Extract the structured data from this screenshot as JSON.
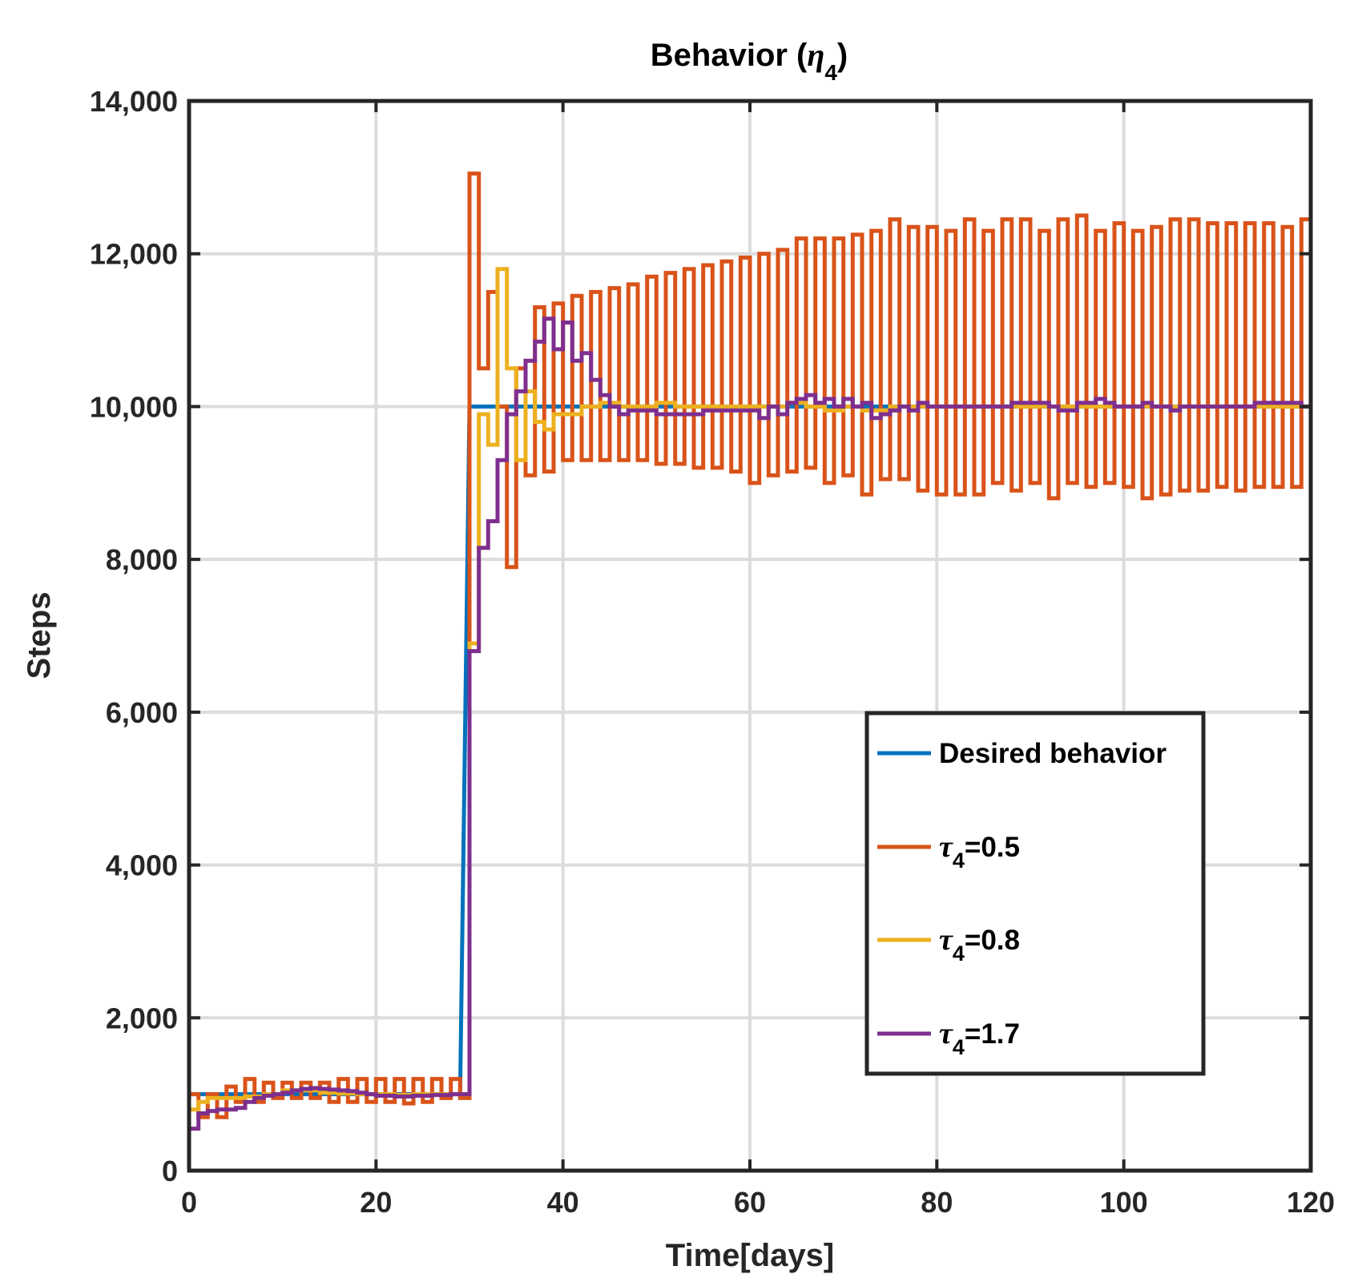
{
  "chart_data": {
    "type": "line",
    "title": "Behavior (",
    "title_symbol": "η",
    "title_subscript": "4",
    "title_close": ")",
    "xlabel": "Time[days]",
    "ylabel": "Steps",
    "xlim": [
      0,
      120
    ],
    "ylim": [
      0,
      14000
    ],
    "x_ticks": [
      0,
      20,
      40,
      60,
      80,
      100,
      120
    ],
    "x_tick_labels": [
      "0",
      "20",
      "40",
      "60",
      "80",
      "100",
      "120"
    ],
    "y_ticks": [
      0,
      2000,
      4000,
      6000,
      8000,
      10000,
      12000,
      14000
    ],
    "y_tick_labels": [
      "0",
      "2,000",
      "4,000",
      "6,000",
      "8,000",
      "10,000",
      "12,000",
      "14,000"
    ],
    "grid": true,
    "legend_position": "lower-right",
    "series": [
      {
        "name": "Desired behavior",
        "color": "#0072BD",
        "mode": "linear",
        "points": [
          [
            0,
            1000
          ],
          [
            29,
            1000
          ],
          [
            30,
            10000
          ],
          [
            120,
            10000
          ]
        ]
      },
      {
        "name": "τ4=0.5",
        "legend_symbol": "τ",
        "legend_sub": "4",
        "legend_value": "=0.5",
        "color": "#D95319",
        "mode": "stairs",
        "x": [
          0,
          1,
          2,
          3,
          4,
          5,
          6,
          7,
          8,
          9,
          10,
          11,
          12,
          13,
          14,
          15,
          16,
          17,
          18,
          19,
          20,
          21,
          22,
          23,
          24,
          25,
          26,
          27,
          28,
          29,
          30,
          31,
          32,
          33,
          34,
          35,
          36,
          37,
          38,
          39,
          40,
          41,
          42,
          43,
          44,
          45,
          46,
          47,
          48,
          49,
          50,
          51,
          52,
          53,
          54,
          55,
          56,
          57,
          58,
          59,
          60,
          61,
          62,
          63,
          64,
          65,
          66,
          67,
          68,
          69,
          70,
          71,
          72,
          73,
          74,
          75,
          76,
          77,
          78,
          79,
          80,
          81,
          82,
          83,
          84,
          85,
          86,
          87,
          88,
          89,
          90,
          91,
          92,
          93,
          94,
          95,
          96,
          97,
          98,
          99,
          100,
          101,
          102,
          103,
          104,
          105,
          106,
          107,
          108,
          109,
          110,
          111,
          112,
          113,
          114,
          115,
          116,
          117,
          118,
          119
        ],
        "values": [
          1000,
          700,
          1000,
          700,
          1100,
          900,
          1200,
          900,
          1150,
          950,
          1150,
          950,
          1150,
          950,
          1150,
          900,
          1200,
          900,
          1200,
          900,
          1200,
          900,
          1200,
          880,
          1200,
          900,
          1200,
          950,
          1200,
          950,
          13050,
          10500,
          11500,
          10000,
          7900,
          10500,
          9100,
          11300,
          9150,
          11350,
          9300,
          11450,
          9300,
          11500,
          9300,
          11550,
          9300,
          11600,
          9300,
          11700,
          9250,
          11750,
          9250,
          11800,
          9200,
          11850,
          9200,
          11900,
          9150,
          11950,
          9000,
          12000,
          9100,
          12050,
          9150,
          12200,
          9200,
          12200,
          9000,
          12200,
          9100,
          12250,
          8850,
          12300,
          9050,
          12450,
          9050,
          12350,
          8900,
          12350,
          8850,
          12300,
          8850,
          12450,
          8850,
          12300,
          9000,
          12450,
          8900,
          12450,
          9000,
          12300,
          8800,
          12450,
          9000,
          12500,
          8950,
          12300,
          9000,
          12400,
          8950,
          12300,
          8800,
          12350,
          8850,
          12450,
          8900,
          12450,
          8900,
          12400,
          8950,
          12400,
          8900,
          12400,
          8950,
          12400,
          8950,
          12350,
          8950,
          12450
        ],
        "end_x": 120
      },
      {
        "name": "τ4=0.8",
        "legend_symbol": "τ",
        "legend_sub": "4",
        "legend_value": "=0.8",
        "color": "#EDB120",
        "mode": "stairs",
        "x": [
          0,
          1,
          2,
          4,
          6,
          8,
          10,
          12,
          14,
          16,
          18,
          20,
          22,
          24,
          26,
          28,
          30,
          31,
          32,
          33,
          34,
          35,
          36,
          37,
          38,
          39,
          40,
          42,
          44,
          46,
          48,
          50,
          52,
          55,
          58,
          60,
          62,
          64,
          66,
          68,
          70,
          72,
          75,
          80,
          85,
          90,
          95,
          100,
          105,
          110,
          115
        ],
        "values": [
          800,
          900,
          950,
          950,
          970,
          1000,
          1050,
          1050,
          1020,
          1010,
          1000,
          1000,
          990,
          1000,
          1000,
          1000,
          6900,
          9900,
          9500,
          11800,
          10500,
          9300,
          10200,
          9800,
          9700,
          9900,
          9900,
          10000,
          10050,
          10000,
          10000,
          10050,
          10000,
          10000,
          10000,
          10000,
          10000,
          10050,
          10000,
          9950,
          10000,
          9950,
          10000,
          10000,
          10000,
          10000,
          10000,
          10000,
          10000,
          10000,
          10000
        ],
        "end_x": 120
      },
      {
        "name": "τ4=1.7",
        "legend_symbol": "τ",
        "legend_sub": "4",
        "legend_value": "=1.7",
        "color": "#7E2F8E",
        "mode": "stairs",
        "x": [
          0,
          1,
          2,
          3,
          4,
          5,
          6,
          7,
          8,
          9,
          10,
          11,
          12,
          13,
          14,
          15,
          16,
          17,
          18,
          19,
          20,
          21,
          22,
          23,
          24,
          25,
          26,
          27,
          28,
          29,
          30,
          31,
          32,
          33,
          34,
          35,
          36,
          37,
          38,
          39,
          40,
          41,
          42,
          43,
          44,
          45,
          46,
          47,
          48,
          50,
          52,
          55,
          58,
          60,
          61,
          62,
          63,
          64,
          65,
          66,
          67,
          68,
          69,
          70,
          71,
          72,
          73,
          74,
          75,
          76,
          77,
          78,
          79,
          80,
          82,
          85,
          88,
          90,
          92,
          93,
          95,
          96,
          97,
          98,
          99,
          100,
          101,
          102,
          103,
          104,
          105,
          106,
          108,
          110,
          112,
          114,
          116,
          118,
          119
        ],
        "values": [
          550,
          750,
          780,
          800,
          800,
          820,
          900,
          950,
          980,
          1000,
          1020,
          1050,
          1070,
          1080,
          1070,
          1060,
          1050,
          1040,
          1020,
          1000,
          980,
          980,
          970,
          970,
          980,
          980,
          990,
          990,
          1000,
          1000,
          6800,
          8150,
          8500,
          9300,
          9900,
          10200,
          10600,
          10850,
          11150,
          10750,
          11100,
          10600,
          10700,
          10350,
          10150,
          10000,
          9900,
          9950,
          9950,
          9900,
          9900,
          9950,
          9950,
          9950,
          9850,
          10000,
          9900,
          10050,
          10100,
          10150,
          10050,
          10100,
          10000,
          10100,
          10000,
          10050,
          9850,
          9900,
          9950,
          10000,
          9950,
          10050,
          10000,
          10000,
          10000,
          10000,
          10050,
          10050,
          10000,
          9950,
          10050,
          10050,
          10100,
          10050,
          10000,
          10000,
          10000,
          10050,
          10000,
          10000,
          9950,
          10000,
          10000,
          10000,
          10000,
          10050,
          10050,
          10050,
          10000
        ],
        "end_x": 120
      }
    ]
  }
}
